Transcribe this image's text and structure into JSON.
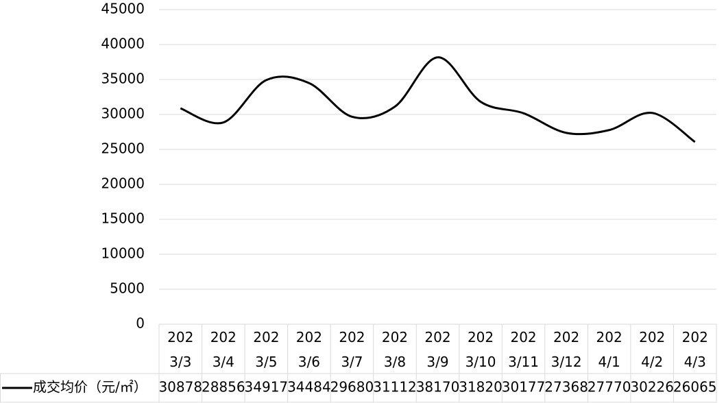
{
  "chart_data": {
    "type": "line",
    "categories": [
      "2023/3",
      "2023/4",
      "2023/5",
      "2023/6",
      "2023/7",
      "2023/8",
      "2023/9",
      "2023/10",
      "2023/11",
      "2023/12",
      "2024/1",
      "2024/2",
      "2024/3"
    ],
    "series": [
      {
        "name": "成交均价（元/㎡）",
        "color": "#000000",
        "values": [
          30878,
          28856,
          34917,
          34484,
          29680,
          31112,
          38170,
          31820,
          30177,
          27368,
          27770,
          30226,
          26065
        ]
      }
    ],
    "ylim": [
      0,
      45000
    ],
    "yticks": [
      0,
      5000,
      10000,
      15000,
      20000,
      25000,
      30000,
      35000,
      40000,
      45000
    ],
    "grid": true,
    "smooth": true,
    "data_table": true
  }
}
